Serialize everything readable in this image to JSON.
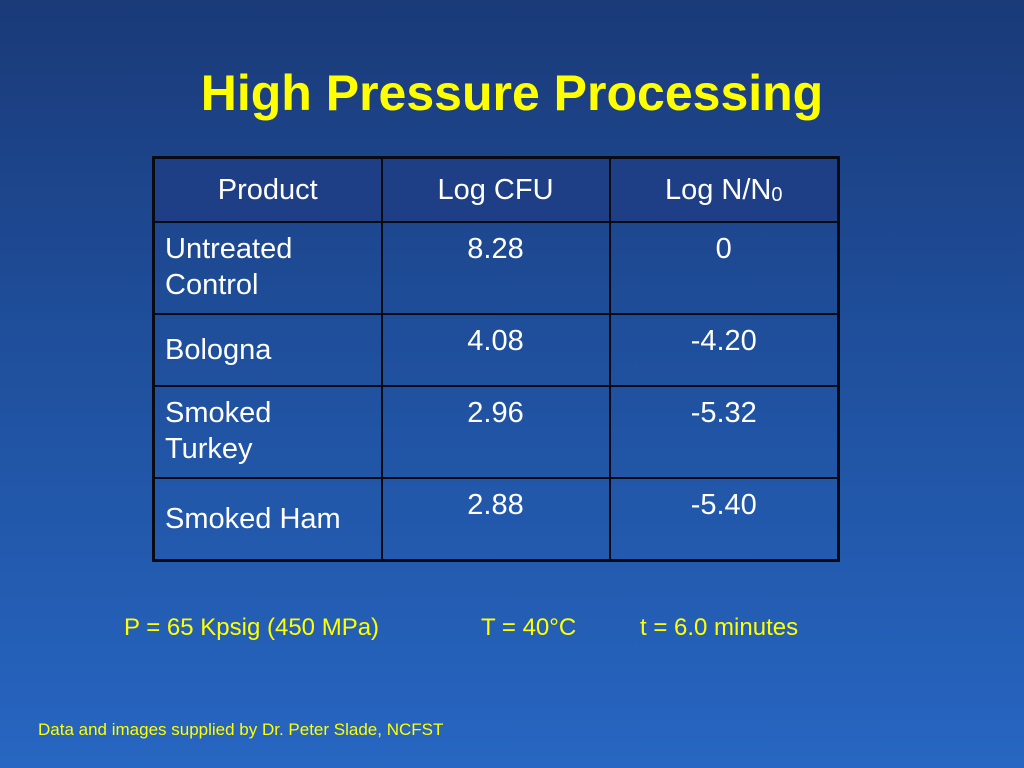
{
  "slide": {
    "title": "High Pressure Processing"
  },
  "table": {
    "headers": {
      "product": "Product",
      "log_cfu": "Log CFU",
      "log_nn0_main": "Log N/N",
      "log_nn0_sub": "0"
    },
    "rows": [
      {
        "product_line1": "Untreated",
        "product_line2": "Control",
        "log_cfu": "8.28",
        "log_nn0": "0"
      },
      {
        "product_line1": "Bologna",
        "product_line2": "",
        "log_cfu": "4.08",
        "log_nn0": "-4.20"
      },
      {
        "product_line1": "Smoked",
        "product_line2": "Turkey",
        "log_cfu": "2.96",
        "log_nn0": "-5.32"
      },
      {
        "product_line1": "Smoked Ham",
        "product_line2": "",
        "log_cfu": "2.88",
        "log_nn0": "-5.40"
      }
    ]
  },
  "conditions": {
    "pressure": "P = 65 Kpsig (450 MPa)",
    "temperature": "T = 40°C",
    "time": "t = 6.0 minutes"
  },
  "credit": "Data and images supplied by Dr. Peter Slade, NCFST",
  "colors": {
    "title": "#ffff00",
    "background_top": "#1a3a78",
    "background_bottom": "#2766c2",
    "table_header": "#1e3f86",
    "table_border": "#0a0a12"
  }
}
